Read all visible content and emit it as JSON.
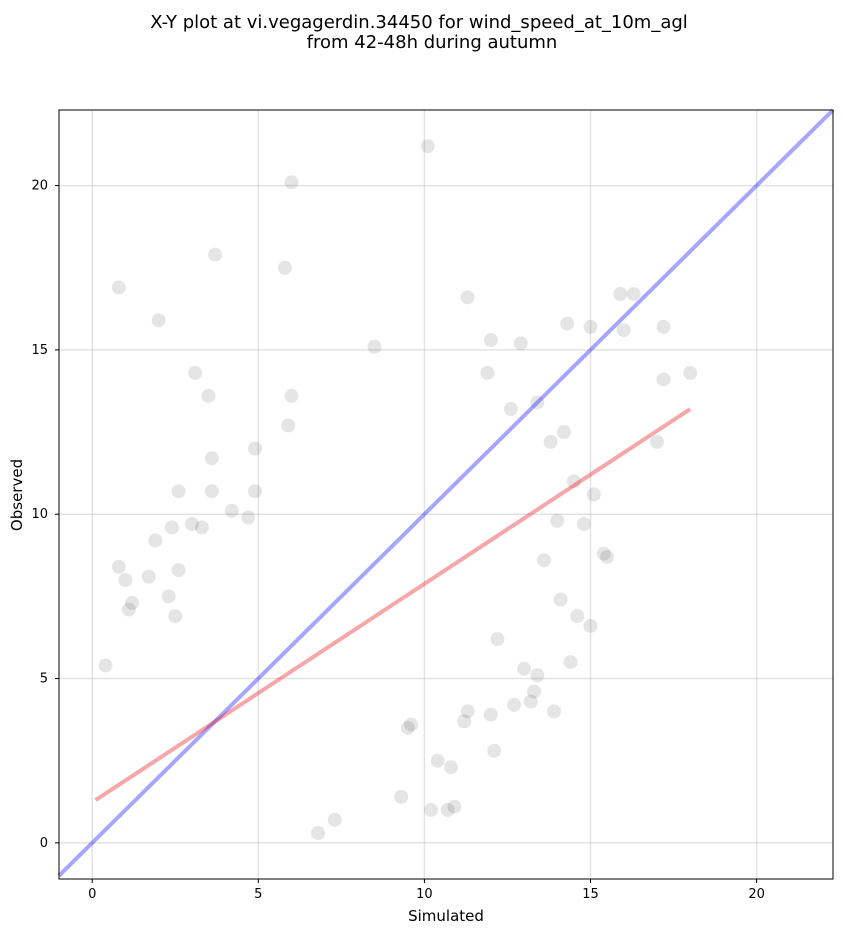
{
  "chart_data": {
    "type": "scatter",
    "title_lines": [
      "X-Y plot at vi.vegagerdin.34450 for wind_speed_at_10m_agl",
      "from 42-48h during autumn"
    ],
    "xlabel": "Simulated",
    "ylabel": "Observed",
    "xlim": [
      -1,
      22.3
    ],
    "ylim": [
      -1.1,
      22.3
    ],
    "xticks": [
      0,
      5,
      10,
      15,
      20
    ],
    "yticks": [
      0,
      5,
      10,
      15,
      20
    ],
    "grid": true,
    "point_color": "#000000",
    "point_alpha": 0.1,
    "identity_line": {
      "from": [
        -1,
        -1
      ],
      "to": [
        22.3,
        22.3
      ],
      "color": "#0000ff",
      "alpha": 0.35
    },
    "regression_line": {
      "from": [
        0.1,
        1.3
      ],
      "to": [
        18.0,
        13.2
      ],
      "color": "#e8000b",
      "alpha": 0.35
    },
    "points": [
      [
        0.8,
        16.9
      ],
      [
        2.0,
        15.9
      ],
      [
        3.7,
        17.9
      ],
      [
        5.8,
        17.5
      ],
      [
        6.0,
        20.1
      ],
      [
        10.1,
        21.2
      ],
      [
        3.1,
        14.3
      ],
      [
        3.5,
        13.6
      ],
      [
        6.0,
        13.6
      ],
      [
        5.9,
        12.7
      ],
      [
        8.5,
        15.1
      ],
      [
        11.3,
        16.6
      ],
      [
        15.9,
        16.7
      ],
      [
        16.3,
        16.7
      ],
      [
        15.0,
        15.7
      ],
      [
        16.0,
        15.6
      ],
      [
        17.2,
        15.7
      ],
      [
        14.3,
        15.8
      ],
      [
        12.0,
        15.3
      ],
      [
        12.9,
        15.2
      ],
      [
        17.2,
        14.1
      ],
      [
        18.0,
        14.3
      ],
      [
        17.0,
        12.2
      ],
      [
        15.1,
        10.6
      ],
      [
        15.0,
        6.6
      ],
      [
        15.4,
        8.8
      ],
      [
        15.5,
        8.7
      ],
      [
        14.4,
        5.5
      ],
      [
        13.9,
        4.0
      ],
      [
        12.1,
        2.8
      ],
      [
        9.3,
        1.4
      ],
      [
        10.2,
        1.0
      ],
      [
        10.7,
        1.0
      ],
      [
        10.9,
        1.1
      ],
      [
        10.8,
        2.3
      ],
      [
        10.4,
        2.5
      ],
      [
        9.6,
        3.6
      ],
      [
        9.5,
        3.5
      ],
      [
        7.3,
        0.7
      ],
      [
        6.8,
        0.3
      ],
      [
        11.2,
        3.7
      ],
      [
        11.3,
        4.0
      ],
      [
        12.0,
        3.9
      ],
      [
        12.7,
        4.2
      ],
      [
        13.2,
        4.3
      ],
      [
        13.3,
        4.6
      ],
      [
        13.0,
        5.3
      ],
      [
        13.4,
        5.1
      ],
      [
        12.2,
        6.2
      ],
      [
        14.6,
        6.9
      ],
      [
        14.1,
        7.4
      ],
      [
        13.6,
        8.6
      ],
      [
        14.0,
        9.8
      ],
      [
        14.8,
        9.7
      ],
      [
        14.5,
        11.0
      ],
      [
        14.2,
        12.5
      ],
      [
        13.8,
        12.2
      ],
      [
        13.4,
        13.4
      ],
      [
        12.6,
        13.2
      ],
      [
        11.9,
        14.3
      ],
      [
        3.6,
        11.7
      ],
      [
        3.6,
        10.7
      ],
      [
        2.6,
        10.7
      ],
      [
        4.9,
        12.0
      ],
      [
        4.9,
        10.7
      ],
      [
        4.7,
        9.9
      ],
      [
        4.2,
        10.1
      ],
      [
        3.3,
        9.6
      ],
      [
        2.4,
        9.6
      ],
      [
        1.9,
        9.2
      ],
      [
        1.7,
        8.1
      ],
      [
        1.0,
        8.0
      ],
      [
        0.8,
        8.4
      ],
      [
        1.2,
        7.3
      ],
      [
        1.1,
        7.1
      ],
      [
        0.4,
        5.4
      ],
      [
        2.3,
        7.5
      ],
      [
        2.6,
        8.3
      ],
      [
        3.0,
        9.7
      ],
      [
        2.5,
        6.9
      ]
    ]
  }
}
